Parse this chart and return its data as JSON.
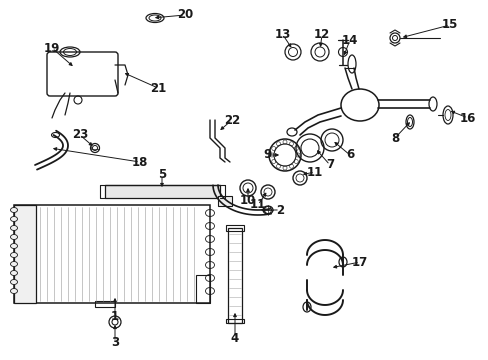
{
  "bg_color": "#ffffff",
  "lc": "#1a1a1a",
  "fs": 8.5,
  "fig_w": 4.89,
  "fig_h": 3.6,
  "dpi": 100
}
